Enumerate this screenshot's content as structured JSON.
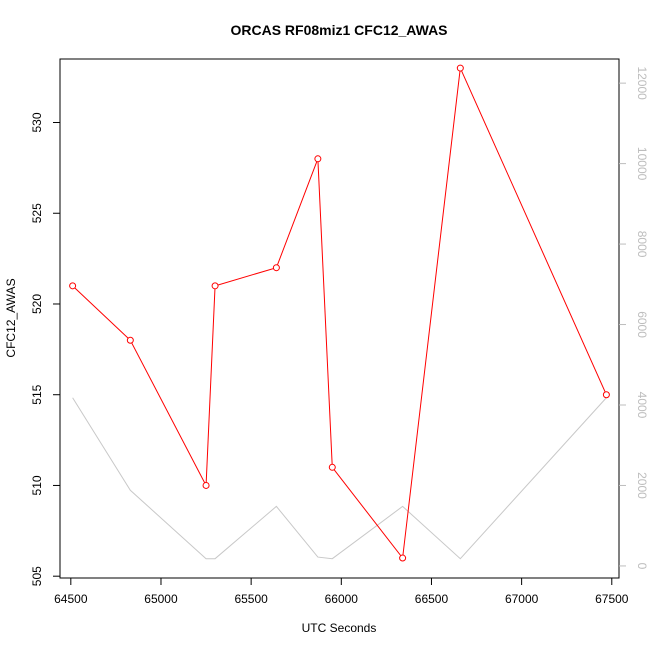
{
  "chart_data": {
    "type": "line",
    "title": "ORCAS RF08miz1 CFC12_AWAS",
    "xlabel": "UTC Seconds",
    "ylabel": "CFC12_AWAS",
    "xlim": [
      64440,
      67540
    ],
    "ylim": [
      504.9,
      533.5
    ],
    "x_ticks": [
      64500,
      65000,
      65500,
      66000,
      66500,
      67000,
      67500
    ],
    "y_ticks": [
      505,
      510,
      515,
      520,
      525,
      530
    ],
    "y2_ticks": [
      0,
      2000,
      4000,
      6000,
      8000,
      10000,
      12000
    ],
    "y2lim": [
      -300,
      12600
    ],
    "grid": false,
    "series": [
      {
        "color": "#ff0000",
        "markers": "open-circle",
        "axis": "left",
        "points": [
          {
            "x": 64510,
            "y": 521
          },
          {
            "x": 64830,
            "y": 518
          },
          {
            "x": 65250,
            "y": 510
          },
          {
            "x": 65300,
            "y": 521
          },
          {
            "x": 65640,
            "y": 522
          },
          {
            "x": 65870,
            "y": 528
          },
          {
            "x": 65950,
            "y": 511
          },
          {
            "x": 66340,
            "y": 506
          },
          {
            "x": 66660,
            "y": 533
          },
          {
            "x": 67470,
            "y": 515
          }
        ]
      },
      {
        "color": "#c8c8c8",
        "markers": "none",
        "axis": "right",
        "points": [
          {
            "x": 64510,
            "y": 4180
          },
          {
            "x": 64830,
            "y": 1880
          },
          {
            "x": 65250,
            "y": 180
          },
          {
            "x": 65300,
            "y": 180
          },
          {
            "x": 65640,
            "y": 1480
          },
          {
            "x": 65870,
            "y": 220
          },
          {
            "x": 65950,
            "y": 180
          },
          {
            "x": 66340,
            "y": 1480
          },
          {
            "x": 66660,
            "y": 180
          },
          {
            "x": 67470,
            "y": 4180
          }
        ]
      }
    ]
  }
}
